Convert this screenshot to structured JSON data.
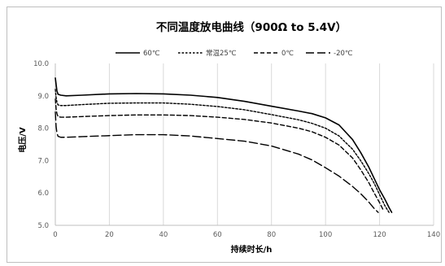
{
  "chart_data": {
    "type": "line",
    "title": "不同温度放电曲线（900Ω to 5.4V）",
    "xlabel": "持续时长/h",
    "ylabel": "电压/V",
    "xlim": [
      0,
      140
    ],
    "ylim": [
      5.0,
      10.0
    ],
    "x_ticks": [
      "0",
      "20",
      "40",
      "60",
      "80",
      "100",
      "120",
      "140"
    ],
    "y_ticks": [
      "5.0",
      "6.0",
      "7.0",
      "8.0",
      "9.0",
      "10.0"
    ],
    "grid": "vertical",
    "legend_position": "top",
    "series": [
      {
        "name": "60℃",
        "dash": "solid",
        "color": "#000000",
        "x": [
          0,
          0.3,
          0.6,
          1,
          2,
          4,
          10,
          20,
          30,
          40,
          50,
          60,
          70,
          80,
          90,
          95,
          100,
          105,
          110,
          113,
          116,
          118,
          120,
          122,
          123.5,
          124.5
        ],
        "y": [
          9.55,
          9.35,
          9.15,
          9.05,
          9.02,
          9.0,
          9.02,
          9.06,
          9.07,
          9.06,
          9.02,
          8.95,
          8.83,
          8.68,
          8.53,
          8.45,
          8.32,
          8.1,
          7.65,
          7.25,
          6.8,
          6.45,
          6.1,
          5.8,
          5.55,
          5.4
        ]
      },
      {
        "name": "常温25℃",
        "dash": "dotted",
        "color": "#000000",
        "x": [
          0,
          0.3,
          0.6,
          1,
          2,
          4,
          10,
          20,
          30,
          40,
          50,
          60,
          70,
          80,
          90,
          95,
          100,
          105,
          110,
          113,
          116,
          118,
          120,
          122,
          123.5
        ],
        "y": [
          9.2,
          8.95,
          8.8,
          8.72,
          8.7,
          8.7,
          8.73,
          8.77,
          8.78,
          8.78,
          8.74,
          8.67,
          8.57,
          8.42,
          8.26,
          8.15,
          8.0,
          7.76,
          7.35,
          7.0,
          6.6,
          6.3,
          5.95,
          5.6,
          5.4
        ]
      },
      {
        "name": "0℃",
        "dash": "dashed",
        "color": "#000000",
        "x": [
          0,
          0.3,
          0.6,
          1,
          2,
          4,
          10,
          20,
          30,
          40,
          50,
          60,
          70,
          80,
          90,
          95,
          100,
          105,
          110,
          113,
          116,
          118,
          120,
          121.5
        ],
        "y": [
          8.9,
          8.6,
          8.45,
          8.36,
          8.34,
          8.34,
          8.36,
          8.39,
          8.41,
          8.41,
          8.39,
          8.34,
          8.27,
          8.16,
          8.0,
          7.89,
          7.72,
          7.48,
          7.08,
          6.72,
          6.32,
          6.0,
          5.7,
          5.45
        ]
      },
      {
        "name": "-20℃",
        "dash": "longdash",
        "color": "#000000",
        "x": [
          0,
          0.3,
          0.6,
          1,
          2,
          4,
          10,
          20,
          30,
          40,
          50,
          60,
          70,
          80,
          90,
          95,
          100,
          105,
          110,
          113,
          116,
          118,
          119.5
        ],
        "y": [
          8.5,
          8.05,
          7.85,
          7.75,
          7.72,
          7.72,
          7.74,
          7.77,
          7.8,
          7.8,
          7.76,
          7.68,
          7.6,
          7.45,
          7.2,
          7.02,
          6.78,
          6.52,
          6.2,
          5.98,
          5.72,
          5.52,
          5.4
        ]
      }
    ]
  }
}
